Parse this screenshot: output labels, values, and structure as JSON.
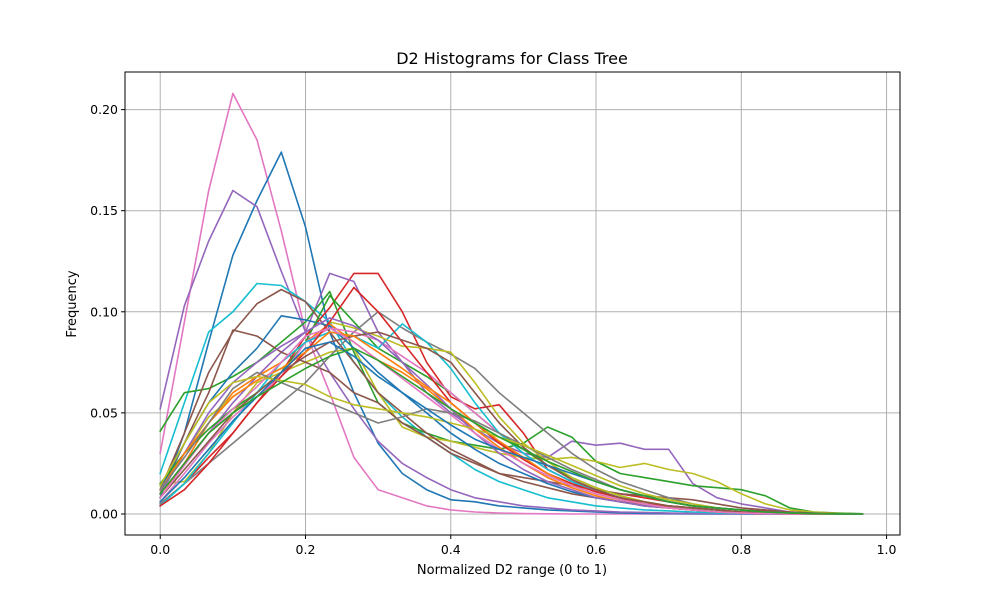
{
  "chart_data": {
    "type": "line",
    "title": "D2 Histograms for Class Tree",
    "xlabel": "Normalized D2 range (0 to 1)",
    "ylabel": "Frequency",
    "xlim": [
      -0.0485,
      1.0185
    ],
    "ylim": [
      -0.0104,
      0.2186
    ],
    "xticks": [
      0.0,
      0.2,
      0.4,
      0.6,
      0.8,
      1.0
    ],
    "xtick_labels": [
      "0.0",
      "0.2",
      "0.4",
      "0.6",
      "0.8",
      "1.0"
    ],
    "yticks": [
      0.0,
      0.05,
      0.1,
      0.15,
      0.2
    ],
    "ytick_labels": [
      "0.00",
      "0.05",
      "0.10",
      "0.15",
      "0.20"
    ],
    "grid": true,
    "x": [
      0.0,
      0.0333,
      0.0667,
      0.1,
      0.1333,
      0.1667,
      0.2,
      0.2333,
      0.2667,
      0.3,
      0.3333,
      0.3667,
      0.4,
      0.4333,
      0.4667,
      0.5,
      0.5333,
      0.5667,
      0.6,
      0.6333,
      0.6667,
      0.7,
      0.7333,
      0.7667,
      0.8,
      0.8333,
      0.8667,
      0.9,
      0.9333,
      0.9667
    ],
    "series": [
      {
        "color": "#e377c2",
        "values": [
          0.03,
          0.095,
          0.16,
          0.208,
          0.185,
          0.14,
          0.09,
          0.06,
          0.028,
          0.012,
          0.008,
          0.004,
          0.002,
          0.001,
          0.0005,
          0.0002,
          0.0001,
          0,
          0,
          0,
          0,
          0,
          0,
          0,
          0,
          0,
          0,
          0,
          0,
          0
        ]
      },
      {
        "color": "#1f77b4",
        "values": [
          0.008,
          0.04,
          0.085,
          0.128,
          0.155,
          0.179,
          0.142,
          0.09,
          0.06,
          0.035,
          0.02,
          0.012,
          0.007,
          0.006,
          0.004,
          0.003,
          0.002,
          0.0015,
          0.001,
          0.0005,
          0.0003,
          0.0002,
          0.0001,
          0,
          0,
          0,
          0,
          0,
          0,
          0
        ]
      },
      {
        "color": "#9467bd",
        "values": [
          0.052,
          0.103,
          0.135,
          0.16,
          0.152,
          0.12,
          0.09,
          0.07,
          0.052,
          0.036,
          0.025,
          0.018,
          0.012,
          0.008,
          0.006,
          0.004,
          0.003,
          0.002,
          0.0015,
          0.001,
          0.0008,
          0.0005,
          0.0003,
          0.0002,
          0.0001,
          0,
          0,
          0,
          0,
          0
        ]
      },
      {
        "color": "#17becf",
        "values": [
          0.02,
          0.055,
          0.09,
          0.1,
          0.114,
          0.113,
          0.105,
          0.095,
          0.075,
          0.06,
          0.048,
          0.038,
          0.03,
          0.022,
          0.016,
          0.012,
          0.008,
          0.006,
          0.004,
          0.003,
          0.002,
          0.0015,
          0.001,
          0.0005,
          0.0003,
          0.0002,
          0.0001,
          0,
          0,
          0
        ]
      },
      {
        "color": "#d62728",
        "values": [
          0.005,
          0.015,
          0.028,
          0.04,
          0.055,
          0.07,
          0.088,
          0.102,
          0.119,
          0.119,
          0.1,
          0.075,
          0.058,
          0.052,
          0.054,
          0.04,
          0.022,
          0.016,
          0.012,
          0.01,
          0.008,
          0.006,
          0.004,
          0.003,
          0.002,
          0.0015,
          0.001,
          0.0005,
          0.0002,
          0.0001
        ]
      },
      {
        "color": "#9467bd",
        "values": [
          0.01,
          0.025,
          0.04,
          0.055,
          0.068,
          0.08,
          0.09,
          0.119,
          0.115,
          0.09,
          0.075,
          0.06,
          0.05,
          0.042,
          0.035,
          0.03,
          0.028,
          0.036,
          0.034,
          0.035,
          0.032,
          0.032,
          0.015,
          0.008,
          0.005,
          0.003,
          0.001,
          0.0005,
          0.0002,
          0
        ]
      },
      {
        "color": "#2ca02c",
        "values": [
          0.041,
          0.06,
          0.062,
          0.068,
          0.075,
          0.085,
          0.095,
          0.11,
          0.08,
          0.055,
          0.045,
          0.04,
          0.036,
          0.034,
          0.032,
          0.035,
          0.043,
          0.038,
          0.026,
          0.02,
          0.018,
          0.016,
          0.014,
          0.013,
          0.012,
          0.009,
          0.003,
          0.001,
          0.0005,
          0.0001
        ]
      },
      {
        "color": "#bcbd22",
        "values": [
          0.015,
          0.016,
          0.03,
          0.05,
          0.065,
          0.07,
          0.075,
          0.08,
          0.082,
          0.06,
          0.043,
          0.038,
          0.036,
          0.033,
          0.03,
          0.028,
          0.027,
          0.028,
          0.026,
          0.023,
          0.025,
          0.022,
          0.02,
          0.016,
          0.01,
          0.005,
          0.002,
          0.001,
          0.0003,
          0
        ]
      },
      {
        "color": "#8c564b",
        "values": [
          0.01,
          0.035,
          0.06,
          0.091,
          0.088,
          0.08,
          0.075,
          0.07,
          0.06,
          0.055,
          0.045,
          0.038,
          0.03,
          0.025,
          0.02,
          0.018,
          0.016,
          0.014,
          0.012,
          0.01,
          0.009,
          0.008,
          0.007,
          0.005,
          0.003,
          0.002,
          0.001,
          0.0005,
          0.0001,
          0
        ]
      },
      {
        "color": "#8c564b",
        "values": [
          0.012,
          0.04,
          0.07,
          0.09,
          0.104,
          0.111,
          0.105,
          0.09,
          0.075,
          0.06,
          0.05,
          0.04,
          0.032,
          0.026,
          0.02,
          0.016,
          0.013,
          0.01,
          0.008,
          0.006,
          0.005,
          0.004,
          0.003,
          0.002,
          0.001,
          0.0005,
          0.0002,
          0,
          0,
          0
        ]
      },
      {
        "color": "#7f7f7f",
        "values": [
          0.005,
          0.015,
          0.025,
          0.035,
          0.045,
          0.055,
          0.065,
          0.078,
          0.09,
          0.1,
          0.092,
          0.085,
          0.079,
          0.072,
          0.06,
          0.05,
          0.04,
          0.03,
          0.022,
          0.016,
          0.012,
          0.008,
          0.005,
          0.003,
          0.002,
          0.001,
          0.0005,
          0.0002,
          0,
          0
        ]
      },
      {
        "color": "#ff7f0e",
        "values": [
          0.008,
          0.025,
          0.045,
          0.06,
          0.068,
          0.075,
          0.085,
          0.094,
          0.085,
          0.076,
          0.07,
          0.062,
          0.052,
          0.042,
          0.033,
          0.025,
          0.018,
          0.013,
          0.009,
          0.006,
          0.004,
          0.003,
          0.002,
          0.001,
          0.0005,
          0.0002,
          0.0001,
          0,
          0,
          0
        ]
      },
      {
        "color": "#1f77b4",
        "values": [
          0.012,
          0.035,
          0.055,
          0.07,
          0.082,
          0.098,
          0.096,
          0.093,
          0.082,
          0.07,
          0.06,
          0.05,
          0.04,
          0.032,
          0.025,
          0.02,
          0.015,
          0.011,
          0.008,
          0.006,
          0.004,
          0.003,
          0.002,
          0.001,
          0.0005,
          0.0002,
          0,
          0,
          0,
          0
        ]
      },
      {
        "color": "#2ca02c",
        "values": [
          0.015,
          0.03,
          0.042,
          0.052,
          0.06,
          0.07,
          0.085,
          0.108,
          0.095,
          0.082,
          0.075,
          0.068,
          0.06,
          0.05,
          0.04,
          0.032,
          0.024,
          0.018,
          0.013,
          0.009,
          0.006,
          0.004,
          0.003,
          0.002,
          0.001,
          0.0005,
          0.0002,
          0,
          0,
          0
        ]
      },
      {
        "color": "#e377c2",
        "values": [
          0.006,
          0.02,
          0.035,
          0.048,
          0.058,
          0.068,
          0.085,
          0.092,
          0.09,
          0.086,
          0.078,
          0.07,
          0.06,
          0.05,
          0.04,
          0.03,
          0.022,
          0.016,
          0.011,
          0.008,
          0.005,
          0.003,
          0.002,
          0.001,
          0.0005,
          0.0002,
          0,
          0,
          0,
          0
        ]
      },
      {
        "color": "#17becf",
        "values": [
          0.004,
          0.015,
          0.03,
          0.045,
          0.06,
          0.075,
          0.085,
          0.09,
          0.088,
          0.082,
          0.094,
          0.085,
          0.072,
          0.055,
          0.04,
          0.03,
          0.022,
          0.016,
          0.011,
          0.008,
          0.005,
          0.004,
          0.003,
          0.002,
          0.001,
          0.0005,
          0.0002,
          0,
          0,
          0
        ]
      },
      {
        "color": "#bcbd22",
        "values": [
          0.01,
          0.03,
          0.048,
          0.058,
          0.066,
          0.072,
          0.08,
          0.095,
          0.092,
          0.088,
          0.083,
          0.082,
          0.08,
          0.065,
          0.048,
          0.035,
          0.026,
          0.018,
          0.013,
          0.009,
          0.006,
          0.004,
          0.003,
          0.002,
          0.001,
          0.0005,
          0.0002,
          0,
          0,
          0
        ]
      },
      {
        "color": "#d62728",
        "values": [
          0.004,
          0.012,
          0.025,
          0.04,
          0.055,
          0.068,
          0.08,
          0.095,
          0.112,
          0.1,
          0.085,
          0.07,
          0.055,
          0.045,
          0.035,
          0.027,
          0.02,
          0.015,
          0.011,
          0.008,
          0.005,
          0.004,
          0.003,
          0.002,
          0.001,
          0.0005,
          0.0002,
          0,
          0,
          0
        ]
      },
      {
        "color": "#8c564b",
        "values": [
          0.008,
          0.022,
          0.036,
          0.05,
          0.06,
          0.07,
          0.078,
          0.085,
          0.088,
          0.09,
          0.086,
          0.082,
          0.075,
          0.06,
          0.045,
          0.033,
          0.024,
          0.017,
          0.012,
          0.008,
          0.006,
          0.004,
          0.003,
          0.002,
          0.001,
          0.0005,
          0.0002,
          0,
          0,
          0
        ]
      },
      {
        "color": "#9467bd",
        "values": [
          0.01,
          0.03,
          0.05,
          0.065,
          0.075,
          0.083,
          0.09,
          0.097,
          0.093,
          0.086,
          0.075,
          0.064,
          0.052,
          0.04,
          0.03,
          0.022,
          0.016,
          0.012,
          0.008,
          0.006,
          0.004,
          0.003,
          0.002,
          0.001,
          0.0005,
          0.0002,
          0,
          0,
          0,
          0
        ]
      },
      {
        "color": "#ff7f0e",
        "values": [
          0.012,
          0.03,
          0.045,
          0.058,
          0.066,
          0.072,
          0.08,
          0.09,
          0.088,
          0.08,
          0.072,
          0.063,
          0.055,
          0.045,
          0.036,
          0.028,
          0.02,
          0.014,
          0.01,
          0.007,
          0.005,
          0.003,
          0.002,
          0.001,
          0.0005,
          0.0002,
          0,
          0,
          0,
          0
        ]
      },
      {
        "color": "#e377c2",
        "values": [
          0.008,
          0.024,
          0.04,
          0.052,
          0.063,
          0.075,
          0.088,
          0.092,
          0.085,
          0.076,
          0.067,
          0.058,
          0.049,
          0.04,
          0.032,
          0.025,
          0.019,
          0.014,
          0.01,
          0.007,
          0.005,
          0.003,
          0.002,
          0.001,
          0.0005,
          0.0002,
          0,
          0,
          0,
          0
        ]
      },
      {
        "color": "#7f7f7f",
        "values": [
          0.012,
          0.028,
          0.045,
          0.062,
          0.07,
          0.065,
          0.06,
          0.055,
          0.05,
          0.045,
          0.048,
          0.052,
          0.05,
          0.046,
          0.04,
          0.034,
          0.028,
          0.022,
          0.017,
          0.012,
          0.009,
          0.006,
          0.004,
          0.003,
          0.002,
          0.001,
          0.0005,
          0.0002,
          0,
          0
        ]
      },
      {
        "color": "#bcbd22",
        "values": [
          0.014,
          0.035,
          0.055,
          0.065,
          0.068,
          0.066,
          0.064,
          0.058,
          0.054,
          0.052,
          0.05,
          0.048,
          0.045,
          0.042,
          0.038,
          0.034,
          0.029,
          0.024,
          0.019,
          0.014,
          0.01,
          0.007,
          0.005,
          0.003,
          0.002,
          0.001,
          0.0005,
          0.0002,
          0,
          0
        ]
      },
      {
        "color": "#1f77b4",
        "values": [
          0.006,
          0.018,
          0.032,
          0.046,
          0.058,
          0.07,
          0.082,
          0.085,
          0.078,
          0.068,
          0.06,
          0.052,
          0.044,
          0.037,
          0.032,
          0.028,
          0.024,
          0.02,
          0.016,
          0.012,
          0.009,
          0.006,
          0.004,
          0.003,
          0.002,
          0.001,
          0.0005,
          0.0002,
          0,
          0
        ]
      },
      {
        "color": "#2ca02c",
        "values": [
          0.01,
          0.025,
          0.04,
          0.05,
          0.058,
          0.065,
          0.072,
          0.078,
          0.082,
          0.076,
          0.068,
          0.06,
          0.052,
          0.045,
          0.038,
          0.032,
          0.026,
          0.021,
          0.016,
          0.012,
          0.009,
          0.006,
          0.004,
          0.003,
          0.002,
          0.001,
          0.0005,
          0.0002,
          0,
          0
        ]
      }
    ]
  }
}
